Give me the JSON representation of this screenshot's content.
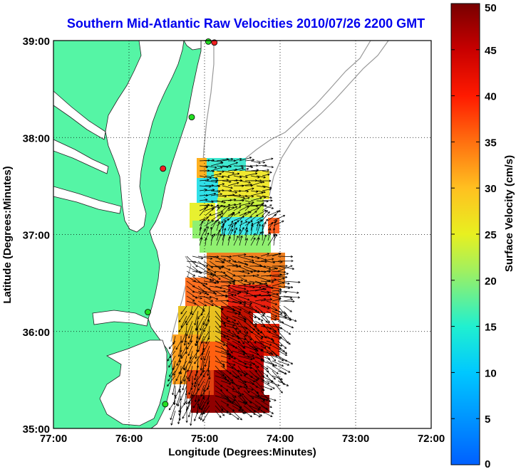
{
  "title": "Southern Mid-Atlantic Raw Velocities 2010/07/26 2200 GMT",
  "x_axis": {
    "label": "Longitude (Degrees:Minutes)",
    "ticks": [
      "77:00",
      "76:00",
      "75:00",
      "74:00",
      "73:00",
      "72:00"
    ],
    "values": [
      -77,
      -76,
      -75,
      -74,
      -73,
      -72
    ]
  },
  "y_axis": {
    "label": "Latitude (Degrees:Minutes)",
    "ticks": [
      "39:00",
      "38:00",
      "37:00",
      "36:00",
      "35:00"
    ],
    "values": [
      39,
      38,
      37,
      36,
      35
    ]
  },
  "colorbar": {
    "label": "Surface Velocity (cm/s)",
    "ticks": [
      "50",
      "45",
      "40",
      "35",
      "30",
      "25",
      "20",
      "15",
      "10",
      "5",
      "0"
    ],
    "min": 0,
    "max": 50
  },
  "colors": {
    "land": "#55f5a5",
    "water": "#ffffff",
    "title": "#0000ee",
    "station_active": "#22dd22",
    "station_inactive": "#ee2222"
  },
  "stations": [
    {
      "lon": -74.87,
      "lat": 38.98,
      "status": "inactive"
    },
    {
      "lon": -74.95,
      "lat": 38.99,
      "status": "active"
    },
    {
      "lon": -75.17,
      "lat": 38.21,
      "status": "active"
    },
    {
      "lon": -75.55,
      "lat": 37.68,
      "status": "inactive"
    },
    {
      "lon": -75.75,
      "lat": 36.2,
      "status": "active"
    },
    {
      "lon": -75.52,
      "lat": 35.25,
      "status": "active"
    }
  ],
  "chart_data": {
    "type": "vector-field",
    "title": "Southern Mid-Atlantic Raw Velocities 2010/07/26 2200 GMT",
    "xlabel": "Longitude (Degrees:Minutes)",
    "ylabel": "Latitude (Degrees:Minutes)",
    "xlim": [
      -77,
      -72
    ],
    "ylim": [
      35,
      39
    ],
    "grid": true,
    "colorbar_label": "Surface Velocity (cm/s)",
    "colorbar_range": [
      0,
      50
    ],
    "regions": [
      {
        "lon_min": -75.1,
        "lon_max": -74.05,
        "lat_min": 36.75,
        "lat_max": 37.8,
        "typical_speed_cm_s": 22,
        "direction_deg": 0
      },
      {
        "lon_min": -75.6,
        "lon_max": -74.0,
        "lat_min": 35.2,
        "lat_max": 36.65,
        "typical_speed_cm_s": 38,
        "direction_deg": 100
      }
    ]
  }
}
